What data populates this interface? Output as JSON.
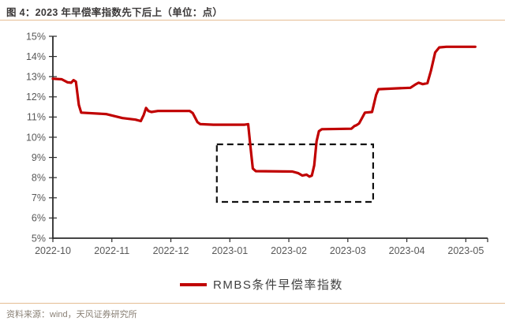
{
  "header": {
    "title": "图 4：2023 年早偿率指数先下后上（单位：点）"
  },
  "footer": {
    "source": "资料来源：wind，天风证券研究所"
  },
  "colors": {
    "line_red": "#C00000",
    "accent_rule": "#E5BD93",
    "axis": "#2B2B2B",
    "tick_label": "#595959",
    "annotation_box": "#111111",
    "title_text": "#3B3838",
    "footer_text": "#8A8176"
  },
  "chart_data": {
    "type": "line",
    "title": "2023 年早偿率指数先下后上",
    "unit_note": "单位：点",
    "xlabel": "",
    "ylabel": "",
    "grid": false,
    "legend_position": "bottom-center",
    "ylim": [
      5,
      15
    ],
    "xlim": [
      0,
      7.37
    ],
    "y_ticks": [
      {
        "value": 5,
        "label": "5%"
      },
      {
        "value": 6,
        "label": "6%"
      },
      {
        "value": 7,
        "label": "7%"
      },
      {
        "value": 8,
        "label": "8%"
      },
      {
        "value": 9,
        "label": "9%"
      },
      {
        "value": 10,
        "label": "10%"
      },
      {
        "value": 11,
        "label": "11%"
      },
      {
        "value": 12,
        "label": "12%"
      },
      {
        "value": 13,
        "label": "13%"
      },
      {
        "value": 14,
        "label": "14%"
      },
      {
        "value": 15,
        "label": "15%"
      }
    ],
    "x_ticks": [
      {
        "value": 0,
        "label": "2022-10"
      },
      {
        "value": 1,
        "label": "2022-11"
      },
      {
        "value": 2,
        "label": "2022-12"
      },
      {
        "value": 3,
        "label": "2023-01"
      },
      {
        "value": 4,
        "label": "2023-02"
      },
      {
        "value": 5,
        "label": "2023-03"
      },
      {
        "value": 6,
        "label": "2023-04"
      },
      {
        "value": 7,
        "label": "2023-05"
      }
    ],
    "series": [
      {
        "name": "RMBS条件早偿率指数",
        "color": "#C00000",
        "points": [
          [
            0.0,
            12.9
          ],
          [
            0.15,
            12.87
          ],
          [
            0.25,
            12.72
          ],
          [
            0.31,
            12.7
          ],
          [
            0.35,
            12.83
          ],
          [
            0.39,
            12.75
          ],
          [
            0.44,
            11.6
          ],
          [
            0.48,
            11.22
          ],
          [
            0.9,
            11.15
          ],
          [
            1.18,
            10.95
          ],
          [
            1.4,
            10.87
          ],
          [
            1.49,
            10.8
          ],
          [
            1.54,
            11.1
          ],
          [
            1.58,
            11.45
          ],
          [
            1.62,
            11.3
          ],
          [
            1.67,
            11.25
          ],
          [
            1.78,
            11.3
          ],
          [
            2.32,
            11.3
          ],
          [
            2.37,
            11.2
          ],
          [
            2.45,
            10.75
          ],
          [
            2.5,
            10.65
          ],
          [
            2.72,
            10.62
          ],
          [
            3.25,
            10.62
          ],
          [
            3.31,
            10.65
          ],
          [
            3.35,
            9.5
          ],
          [
            3.39,
            8.45
          ],
          [
            3.44,
            8.32
          ],
          [
            4.06,
            8.3
          ],
          [
            4.16,
            8.22
          ],
          [
            4.23,
            8.1
          ],
          [
            4.3,
            8.15
          ],
          [
            4.35,
            8.05
          ],
          [
            4.39,
            8.1
          ],
          [
            4.43,
            8.6
          ],
          [
            4.47,
            9.8
          ],
          [
            4.51,
            10.3
          ],
          [
            4.56,
            10.4
          ],
          [
            5.06,
            10.42
          ],
          [
            5.11,
            10.55
          ],
          [
            5.15,
            10.6
          ],
          [
            5.19,
            10.68
          ],
          [
            5.25,
            11.0
          ],
          [
            5.29,
            11.22
          ],
          [
            5.41,
            11.25
          ],
          [
            5.48,
            12.1
          ],
          [
            5.52,
            12.38
          ],
          [
            5.66,
            12.4
          ],
          [
            6.06,
            12.45
          ],
          [
            6.14,
            12.6
          ],
          [
            6.2,
            12.7
          ],
          [
            6.27,
            12.63
          ],
          [
            6.35,
            12.68
          ],
          [
            6.41,
            13.3
          ],
          [
            6.48,
            14.2
          ],
          [
            6.55,
            14.45
          ],
          [
            6.67,
            14.48
          ],
          [
            7.16,
            14.48
          ]
        ]
      }
    ],
    "annotation_box": {
      "x0": 2.78,
      "x1": 5.43,
      "y0": 6.8,
      "y1": 9.65,
      "style": "dashed"
    }
  }
}
